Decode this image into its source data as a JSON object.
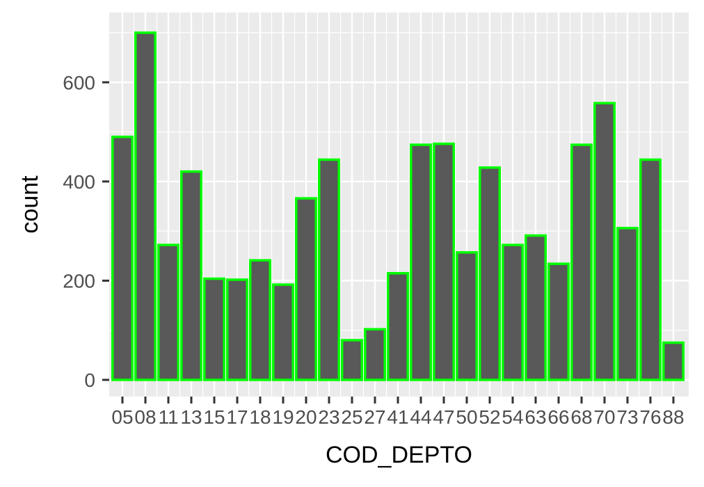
{
  "chart_data": {
    "type": "bar",
    "xlabel": "COD_DEPTO",
    "ylabel": "count",
    "categories": [
      "05",
      "08",
      "11",
      "13",
      "15",
      "17",
      "18",
      "19",
      "20",
      "23",
      "25",
      "27",
      "41",
      "44",
      "47",
      "50",
      "52",
      "54",
      "63",
      "66",
      "68",
      "70",
      "73",
      "76",
      "88"
    ],
    "values": [
      490,
      700,
      272,
      420,
      204,
      202,
      241,
      192,
      366,
      444,
      80,
      102,
      215,
      474,
      476,
      257,
      428,
      272,
      291,
      234,
      474,
      558,
      306,
      444,
      75
    ],
    "ylim": [
      0,
      700
    ],
    "yticks": [
      0,
      200,
      400,
      600
    ],
    "grid": true,
    "colors": {
      "panel_background": "#ebebeb",
      "gridline": "#ffffff",
      "bar_fill": "#595959",
      "bar_outline": "#00ff00",
      "tick_text": "#4d4d4d",
      "tick_mark": "#333333",
      "title_text": "#000000"
    }
  }
}
